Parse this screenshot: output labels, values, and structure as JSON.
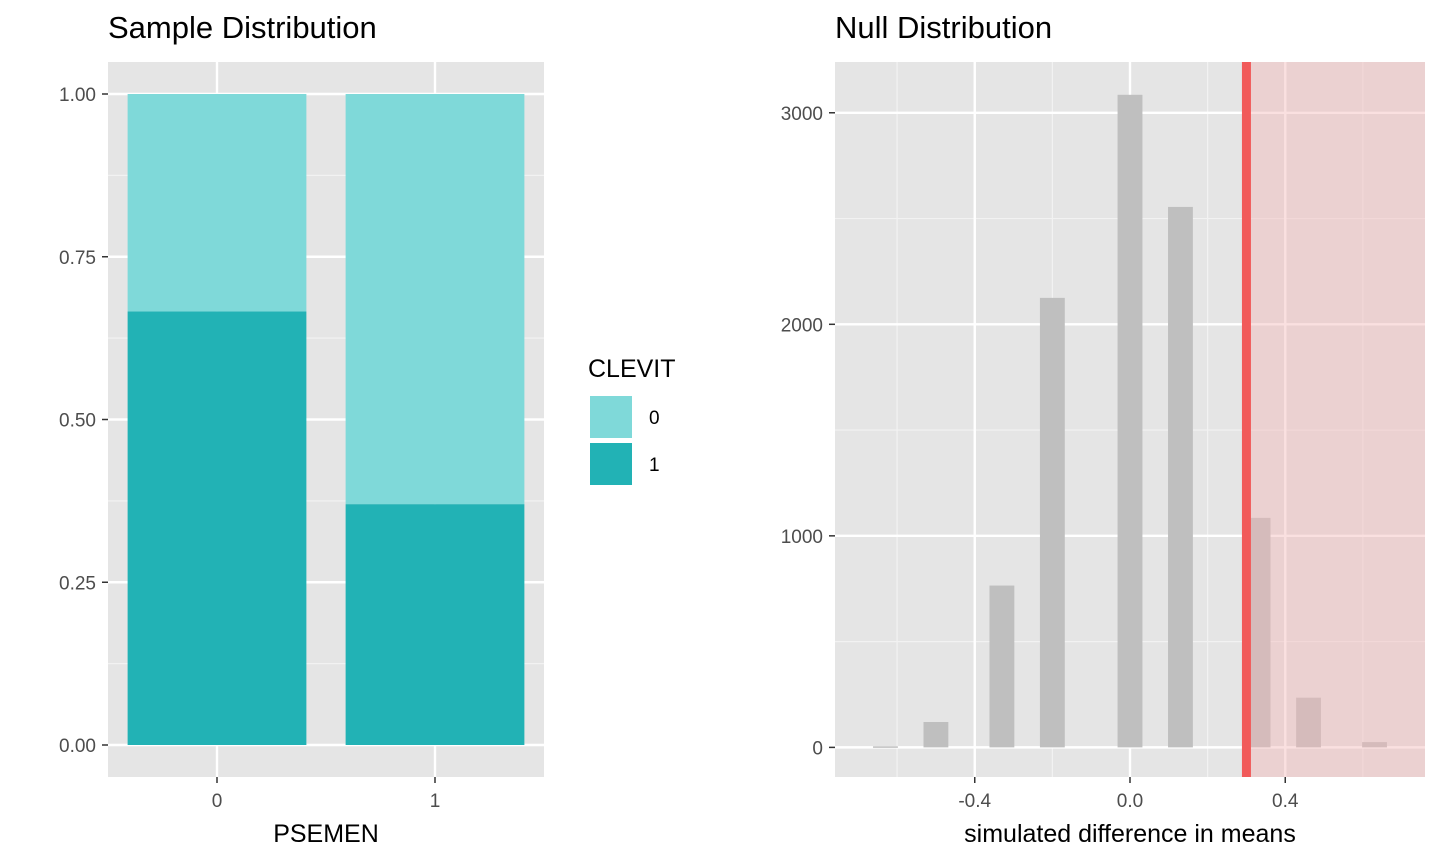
{
  "chart_data": [
    {
      "type": "bar",
      "stacked": "fill",
      "title": "Sample Distribution",
      "xlabel": "PSEMEN",
      "ylabel": "",
      "categories": [
        "0",
        "1"
      ],
      "series": [
        {
          "name": "0",
          "color": "#7fd9d9",
          "values": [
            0.334,
            0.63
          ]
        },
        {
          "name": "1",
          "color": "#22b2b5",
          "values": [
            0.666,
            0.37
          ]
        }
      ],
      "ylim": [
        0,
        1
      ],
      "yticks": [
        0,
        0.25,
        0.5,
        0.75,
        1.0
      ],
      "ytick_labels": [
        "0.00",
        "0.25",
        "0.50",
        "0.75",
        "1.00"
      ],
      "grid": true,
      "legend": {
        "title": "CLEVIT",
        "position": "right",
        "entries": [
          "0",
          "1"
        ]
      }
    },
    {
      "type": "bar",
      "subtype": "histogram",
      "title": "Null Distribution",
      "xlabel": "simulated difference in means",
      "ylabel": "",
      "x": [
        -0.63,
        -0.5,
        -0.33,
        -0.2,
        0.0,
        0.13,
        0.33,
        0.46,
        0.63
      ],
      "values": [
        5,
        120,
        765,
        2125,
        3085,
        2555,
        1085,
        235,
        25
      ],
      "bar_color": "#bfbfbf",
      "xlim": [
        -0.76,
        0.76
      ],
      "ylim": [
        -140,
        3240
      ],
      "xticks": [
        -0.4,
        0.0,
        0.4
      ],
      "xtick_labels": [
        "-0.4",
        "0.0",
        "0.4"
      ],
      "yticks": [
        0,
        1000,
        2000,
        3000
      ],
      "ytick_labels": [
        "0",
        "1000",
        "2000",
        "3000"
      ],
      "grid": true,
      "observed_statistic": {
        "value": 0.3,
        "color": "#f15a5a"
      },
      "shade": {
        "from": 0.3,
        "direction": "greater",
        "color": "#f4b6b6"
      }
    }
  ]
}
